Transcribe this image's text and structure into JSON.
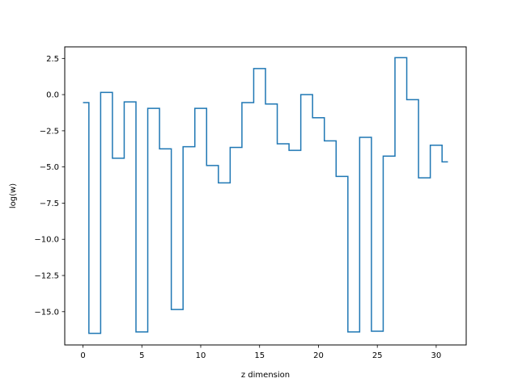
{
  "chart_data": {
    "type": "line",
    "drawstyle": "steps-mid",
    "title": "",
    "xlabel": "z dimension",
    "ylabel": "log(w)",
    "xlim": [
      -1.55,
      32.55
    ],
    "ylim": [
      -17.3,
      3.3
    ],
    "xticks": [
      0,
      5,
      10,
      15,
      20,
      25,
      30
    ],
    "xtick_labels": [
      "0",
      "5",
      "10",
      "15",
      "20",
      "25",
      "30"
    ],
    "yticks": [
      2.5,
      0.0,
      -2.5,
      -5.0,
      -7.5,
      -10.0,
      -12.5,
      -15.0
    ],
    "ytick_labels": [
      "2.5",
      "0.0",
      "−2.5",
      "−5.0",
      "−7.5",
      "−10.0",
      "−12.5",
      "−15.0"
    ],
    "grid": false,
    "color": "#1f77b4",
    "series": [
      {
        "x": [
          0,
          1,
          2,
          3,
          4,
          5,
          6,
          7,
          8,
          9,
          10,
          11,
          12,
          13,
          14,
          15,
          16,
          17,
          18,
          19,
          20,
          21,
          22,
          23,
          24,
          25,
          26,
          27,
          28,
          29,
          30,
          31
        ],
        "values": [
          -0.55,
          -16.5,
          0.15,
          -4.4,
          -0.5,
          -16.4,
          -0.95,
          -3.75,
          -14.85,
          -3.6,
          -0.95,
          -4.9,
          -6.1,
          -3.65,
          -0.55,
          1.8,
          -0.65,
          -3.4,
          -3.85,
          0.0,
          -1.6,
          -3.2,
          -5.65,
          -16.4,
          -2.95,
          -16.35,
          -4.25,
          2.55,
          -0.35,
          -5.75,
          -3.5,
          -4.65
        ]
      }
    ]
  }
}
